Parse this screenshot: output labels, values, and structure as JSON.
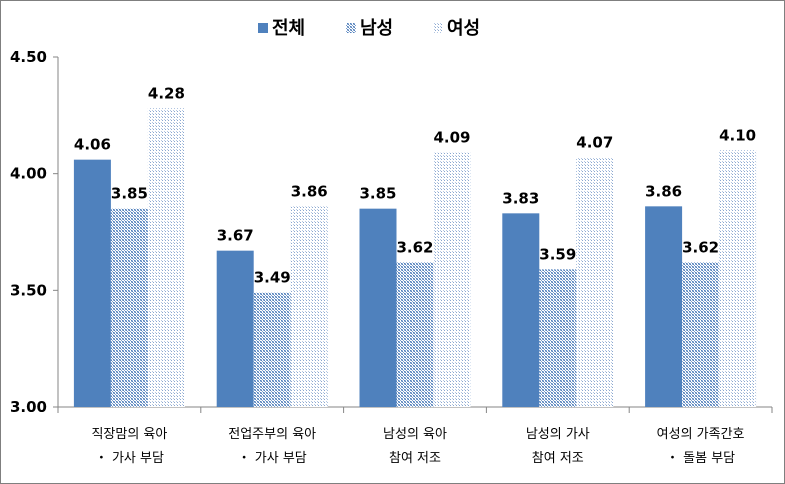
{
  "chart_data": {
    "type": "bar",
    "title": "",
    "xlabel": "",
    "ylabel": "",
    "ylim": [
      3.0,
      4.5
    ],
    "yticks": [
      "3.00",
      "3.50",
      "4.00",
      "4.50"
    ],
    "legend_position": "top-center",
    "categories": [
      [
        "직장맘의 육아",
        "・ 가사 부담"
      ],
      [
        "전업주부의 육아",
        "・ 가사 부담"
      ],
      [
        "남성의 육아",
        "참여 저조"
      ],
      [
        "남성의 가사",
        "참여 저조"
      ],
      [
        "여성의 가족간호",
        "・ 돌봄 부담"
      ]
    ],
    "series": [
      {
        "name": "전체",
        "values": [
          4.06,
          3.67,
          3.85,
          3.83,
          3.86
        ],
        "labels": [
          "4.06",
          "3.67",
          "3.85",
          "3.83",
          "3.86"
        ],
        "color": "#4f81bd",
        "pattern": "solid"
      },
      {
        "name": "남성",
        "values": [
          3.85,
          3.49,
          3.62,
          3.59,
          3.62
        ],
        "labels": [
          "3.85",
          "3.49",
          "3.62",
          "3.59",
          "3.62"
        ],
        "color": "#4f81bd",
        "pattern": "medium-dots"
      },
      {
        "name": "여성",
        "values": [
          4.28,
          3.86,
          4.09,
          4.07,
          4.1
        ],
        "labels": [
          "4.28",
          "3.86",
          "4.09",
          "4.07",
          "4.10"
        ],
        "color": "#4f81bd",
        "pattern": "light-dots"
      }
    ]
  }
}
